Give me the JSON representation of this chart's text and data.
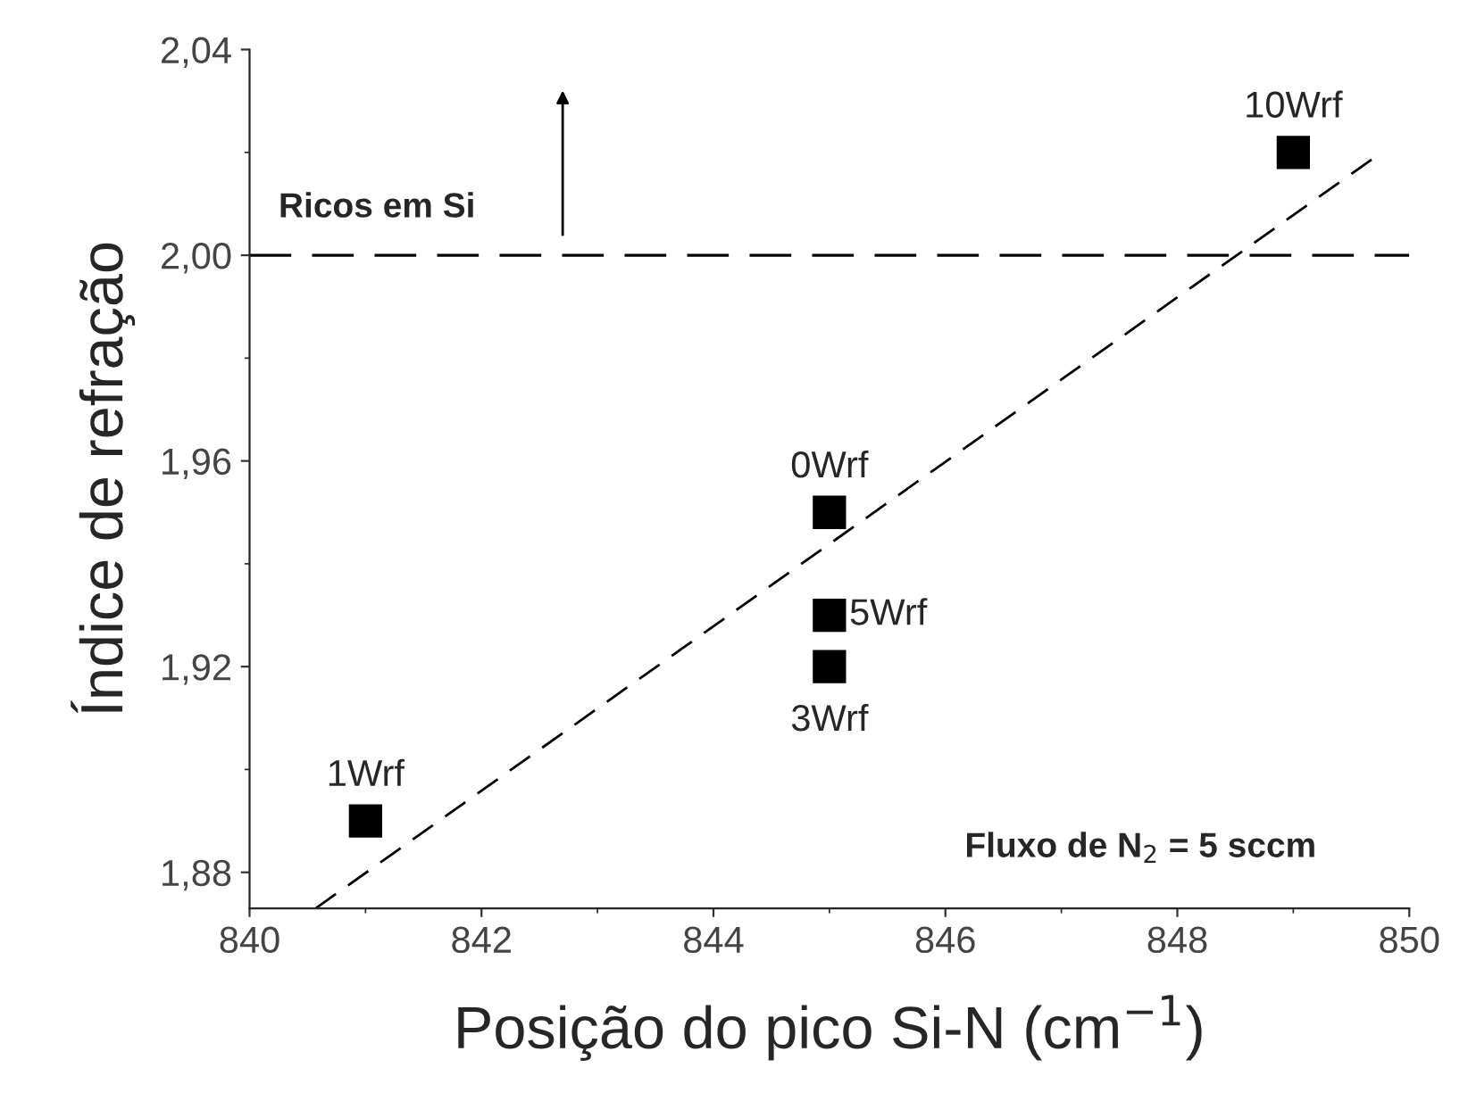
{
  "chart_data": {
    "type": "scatter",
    "xlabel": "Posição do pico Si-N (cm$^{−1}$)",
    "ylabel": "Índice de refração",
    "xlim": [
      840,
      850
    ],
    "ylim": [
      1.873,
      2.04
    ],
    "xticks": [
      840,
      842,
      844,
      846,
      848,
      850
    ],
    "yticks": [
      {
        "value": 1.88,
        "label": "1,88"
      },
      {
        "value": 1.92,
        "label": "1,92"
      },
      {
        "value": 1.96,
        "label": "1,96"
      },
      {
        "value": 2.0,
        "label": "2,00"
      },
      {
        "value": 2.04,
        "label": "2,04"
      }
    ],
    "marker": "square",
    "grid": false,
    "legend": false,
    "series": [
      {
        "color": "#000000",
        "x": [
          841,
          845,
          845,
          845,
          849
        ],
        "values": [
          1.89,
          1.95,
          1.93,
          1.92,
          2.02
        ]
      },
      {
        "type": "line",
        "color": "#000000",
        "line_style": "dashed",
        "marker": "none",
        "x": [
          840.57,
          849.7
        ],
        "values": [
          1.873,
          2.019
        ]
      }
    ],
    "ref_lines": [
      {
        "axis": "y",
        "value": 2.0,
        "label": "Ricos em Si",
        "color": "#000000",
        "line_style": "dashed"
      }
    ],
    "annotations": [
      {
        "text": "1Wrf",
        "x": 841,
        "y": 1.89
      },
      {
        "text": "0Wrf",
        "x": 845,
        "y": 1.95
      },
      {
        "text": "5Wrf",
        "x": 845,
        "y": 1.93
      },
      {
        "text": "3Wrf",
        "x": 845,
        "y": 1.92
      },
      {
        "text": "10Wrf",
        "x": 849,
        "y": 2.02
      },
      "Fluxo de N$_{2}$ = 5 sccm"
    ]
  }
}
